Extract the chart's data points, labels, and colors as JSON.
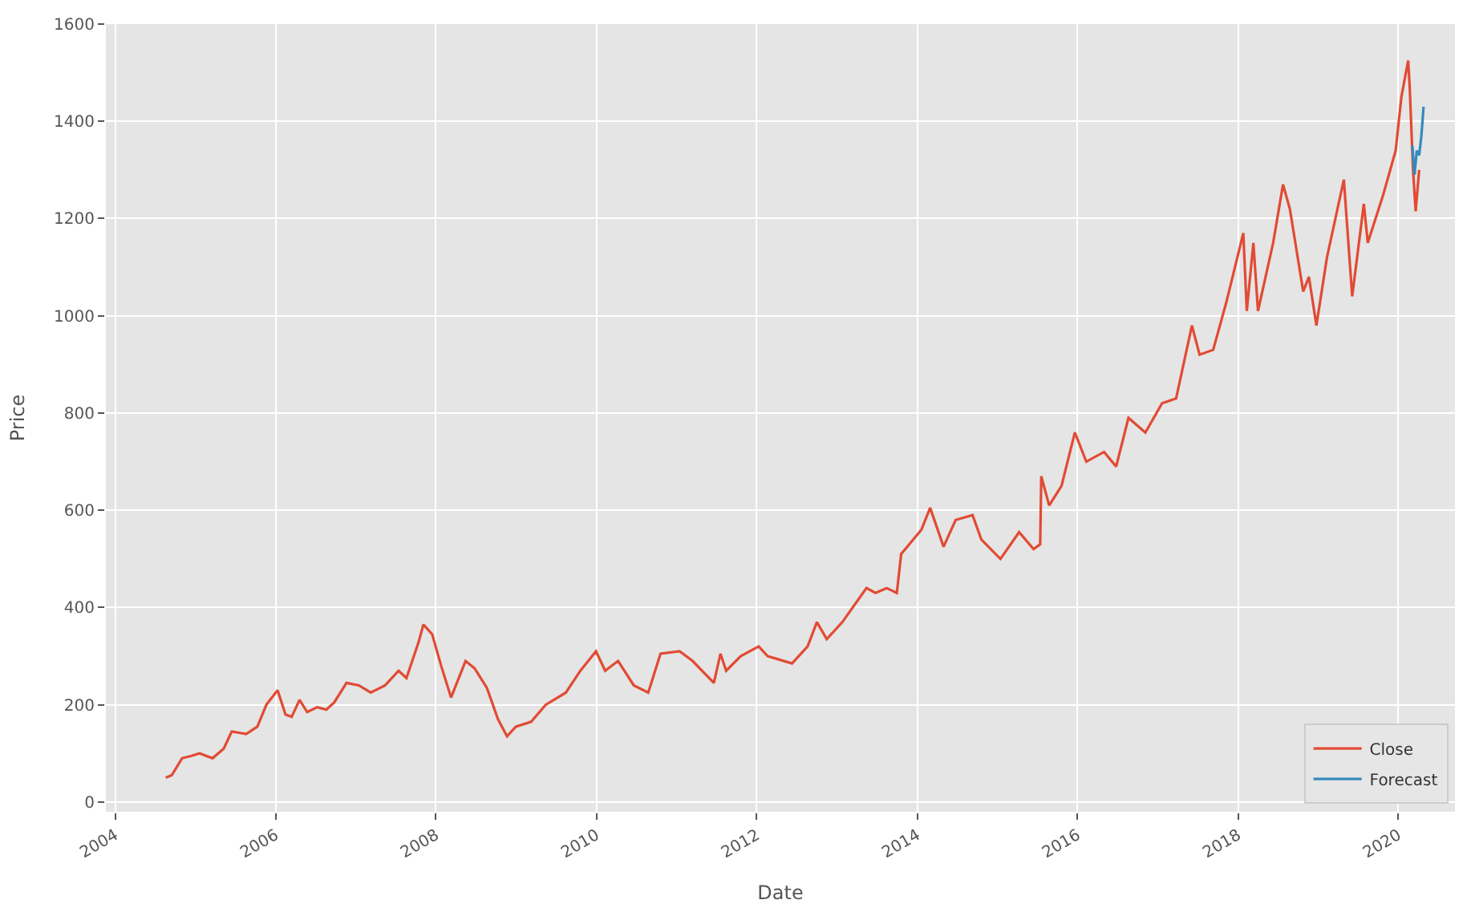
{
  "chart_data": {
    "type": "line",
    "xlabel": "Date",
    "ylabel": "Price",
    "xlim": [
      "2003-11-20",
      "2020-09-15"
    ],
    "xticks": [
      "2004",
      "2006",
      "2008",
      "2010",
      "2012",
      "2014",
      "2016",
      "2018",
      "2020"
    ],
    "ylim": [
      -20,
      1600
    ],
    "yticks": [
      0,
      200,
      400,
      600,
      800,
      1000,
      1200,
      1400,
      1600
    ],
    "grid": true,
    "legend": "bottom right",
    "marker": "none",
    "line_style": "solid",
    "series": [
      {
        "name": "Close",
        "color": "#e24a33",
        "x": [
          "2004-08-19",
          "2004-09-15",
          "2004-11-01",
          "2004-12-15",
          "2005-01-20",
          "2005-03-20",
          "2005-05-10",
          "2005-06-15",
          "2005-08-20",
          "2005-10-10",
          "2005-11-20",
          "2006-01-10",
          "2006-02-15",
          "2006-03-15",
          "2006-04-20",
          "2006-05-25",
          "2006-07-10",
          "2006-08-20",
          "2006-09-25",
          "2006-11-20",
          "2007-01-15",
          "2007-03-10",
          "2007-05-15",
          "2007-07-15",
          "2007-08-20",
          "2007-10-15",
          "2007-11-05",
          "2007-12-15",
          "2008-01-25",
          "2008-03-10",
          "2008-05-15",
          "2008-06-25",
          "2008-08-20",
          "2008-10-10",
          "2008-11-20",
          "2008-12-30",
          "2009-03-10",
          "2009-05-15",
          "2009-08-15",
          "2009-10-20",
          "2009-12-30",
          "2010-02-10",
          "2010-04-10",
          "2010-06-20",
          "2010-08-25",
          "2010-10-20",
          "2011-01-15",
          "2011-03-15",
          "2011-06-20",
          "2011-07-20",
          "2011-08-15",
          "2011-10-20",
          "2012-01-10",
          "2012-02-20",
          "2012-06-10",
          "2012-08-20",
          "2012-10-01",
          "2012-11-15",
          "2013-01-25",
          "2013-05-15",
          "2013-06-25",
          "2013-08-15",
          "2013-09-30",
          "2013-10-20",
          "2014-01-20",
          "2014-03-01",
          "2014-05-01",
          "2014-06-25",
          "2014-09-10",
          "2014-10-20",
          "2015-01-15",
          "2015-04-10",
          "2015-06-15",
          "2015-07-15",
          "2015-07-20",
          "2015-08-25",
          "2015-10-20",
          "2015-12-20",
          "2016-02-10",
          "2016-05-01",
          "2016-06-25",
          "2016-08-20",
          "2016-11-05",
          "2017-01-20",
          "2017-03-25",
          "2017-06-05",
          "2017-07-10",
          "2017-09-10",
          "2017-11-10",
          "2018-01-25",
          "2018-02-10",
          "2018-03-12",
          "2018-04-02",
          "2018-06-10",
          "2018-07-25",
          "2018-08-25",
          "2018-10-25",
          "2018-11-20",
          "2018-12-24",
          "2019-02-10",
          "2019-04-28",
          "2019-06-05",
          "2019-07-28",
          "2019-08-15",
          "2019-10-25",
          "2019-12-20",
          "2020-01-15",
          "2020-02-15",
          "2020-02-22",
          "2020-03-08",
          "2020-03-20",
          "2020-04-05"
        ],
        "values": [
          50,
          55,
          90,
          95,
          100,
          90,
          110,
          145,
          140,
          155,
          200,
          230,
          180,
          175,
          210,
          185,
          195,
          190,
          205,
          245,
          240,
          225,
          240,
          270,
          255,
          330,
          365,
          345,
          280,
          215,
          290,
          275,
          235,
          170,
          135,
          155,
          165,
          200,
          225,
          270,
          310,
          270,
          290,
          240,
          225,
          305,
          310,
          290,
          245,
          305,
          270,
          300,
          320,
          300,
          285,
          320,
          370,
          335,
          370,
          440,
          430,
          440,
          430,
          510,
          560,
          605,
          525,
          580,
          590,
          540,
          500,
          555,
          520,
          530,
          670,
          610,
          650,
          760,
          700,
          720,
          690,
          790,
          760,
          820,
          830,
          980,
          920,
          930,
          1030,
          1170,
          1010,
          1150,
          1010,
          1150,
          1270,
          1220,
          1050,
          1080,
          980,
          1120,
          1280,
          1040,
          1230,
          1150,
          1250,
          1340,
          1450,
          1525,
          1470,
          1300,
          1215,
          1300
        ]
      },
      {
        "name": "Forecast",
        "color": "#348abd",
        "x": [
          "2020-03-05",
          "2020-03-15",
          "2020-03-25",
          "2020-04-05",
          "2020-04-15",
          "2020-04-25"
        ],
        "values": [
          1350,
          1290,
          1340,
          1330,
          1370,
          1430
        ]
      }
    ]
  }
}
